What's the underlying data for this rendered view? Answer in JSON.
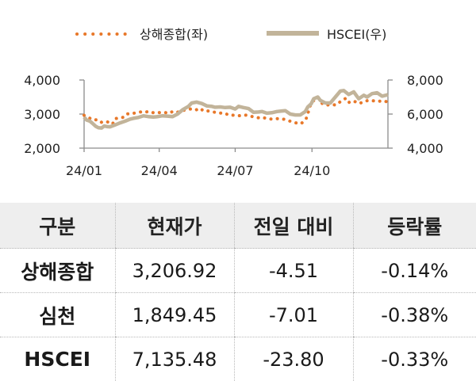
{
  "chart_data": {
    "type": "line",
    "legend": [
      "상해종합(좌)",
      "HSCEI(우)"
    ],
    "legend_position": "top",
    "x_ticks": [
      "24/01",
      "24/04",
      "24/07",
      "24/10"
    ],
    "y_left": {
      "ticks": [
        "2,000",
        "3,000",
        "4,000"
      ],
      "range": [
        2000,
        4000
      ]
    },
    "y_right": {
      "ticks": [
        "4,000",
        "6,000",
        "8,000"
      ],
      "range": [
        4000,
        8000
      ]
    },
    "grid": false,
    "colors": {
      "shanghai": "#e8782a",
      "hscei": "#c2b49a"
    },
    "series": [
      {
        "name": "상해종합(좌)",
        "axis": "left",
        "style": "dotted",
        "dates": [
          "2024-01-02",
          "2024-01-05",
          "2024-01-09",
          "2024-01-12",
          "2024-01-16",
          "2024-01-19",
          "2024-01-23",
          "2024-01-26",
          "2024-01-30",
          "2024-02-02",
          "2024-02-05",
          "2024-02-08",
          "2024-02-19",
          "2024-02-23",
          "2024-02-28",
          "2024-03-05",
          "2024-03-11",
          "2024-03-15",
          "2024-03-20",
          "2024-03-26",
          "2024-03-29",
          "2024-04-08",
          "2024-04-12",
          "2024-04-17",
          "2024-04-22",
          "2024-04-26",
          "2024-05-06",
          "2024-05-10",
          "2024-05-15",
          "2024-05-20",
          "2024-05-24",
          "2024-05-30",
          "2024-06-05",
          "2024-06-12",
          "2024-06-18",
          "2024-06-24",
          "2024-06-28",
          "2024-07-05",
          "2024-07-11",
          "2024-07-17",
          "2024-07-23",
          "2024-07-29",
          "2024-08-02",
          "2024-08-08",
          "2024-08-14",
          "2024-08-20",
          "2024-08-26",
          "2024-08-30",
          "2024-09-05",
          "2024-09-11",
          "2024-09-18",
          "2024-09-24",
          "2024-09-27",
          "2024-09-30",
          "2024-10-08",
          "2024-10-14",
          "2024-10-18",
          "2024-10-24",
          "2024-10-30",
          "2024-11-05",
          "2024-11-11",
          "2024-11-15",
          "2024-11-21",
          "2024-11-27",
          "2024-12-03",
          "2024-12-09",
          "2024-12-13",
          "2024-12-19",
          "2024-12-25",
          "2024-12-31"
        ],
        "values": [
          2962,
          2929,
          2877,
          2882,
          2833,
          2832,
          2756,
          2745,
          2770,
          2730,
          2702,
          2865,
          2910,
          3004,
          3015,
          3039,
          3068,
          3054,
          3079,
          3031,
          3041,
          3047,
          3019,
          3071,
          3044,
          3088,
          3140,
          3154,
          3120,
          3171,
          3088,
          3091,
          3061,
          3029,
          3030,
          2963,
          2967,
          2949,
          2971,
          2962,
          2915,
          2891,
          2905,
          2870,
          2850,
          2866,
          2855,
          2842,
          2788,
          2744,
          2717,
          2863,
          3087,
          3336,
          3489,
          3285,
          3261,
          3280,
          3266,
          3386,
          3470,
          3330,
          3370,
          3309,
          3379,
          3402,
          3391,
          3370,
          3394,
          3351
        ]
      },
      {
        "name": "HSCEI(우)",
        "axis": "right",
        "style": "solid",
        "dates": [
          "2024-01-02",
          "2024-01-05",
          "2024-01-09",
          "2024-01-12",
          "2024-01-16",
          "2024-01-19",
          "2024-01-23",
          "2024-01-26",
          "2024-01-30",
          "2024-02-02",
          "2024-02-08",
          "2024-02-14",
          "2024-02-20",
          "2024-02-26",
          "2024-03-01",
          "2024-03-07",
          "2024-03-13",
          "2024-03-19",
          "2024-03-25",
          "2024-03-29",
          "2024-04-05",
          "2024-04-11",
          "2024-04-17",
          "2024-04-23",
          "2024-04-29",
          "2024-05-06",
          "2024-05-10",
          "2024-05-16",
          "2024-05-22",
          "2024-05-28",
          "2024-06-03",
          "2024-06-07",
          "2024-06-13",
          "2024-06-19",
          "2024-06-25",
          "2024-07-01",
          "2024-07-05",
          "2024-07-11",
          "2024-07-17",
          "2024-07-23",
          "2024-07-29",
          "2024-08-02",
          "2024-08-08",
          "2024-08-14",
          "2024-08-20",
          "2024-08-26",
          "2024-08-30",
          "2024-09-05",
          "2024-09-11",
          "2024-09-17",
          "2024-09-23",
          "2024-09-26",
          "2024-09-30",
          "2024-10-03",
          "2024-10-08",
          "2024-10-11",
          "2024-10-17",
          "2024-10-23",
          "2024-10-29",
          "2024-11-04",
          "2024-11-08",
          "2024-11-14",
          "2024-11-20",
          "2024-11-26",
          "2024-12-02",
          "2024-12-06",
          "2024-12-12",
          "2024-12-18",
          "2024-12-24",
          "2024-12-31"
        ],
        "values": [
          5820,
          5650,
          5580,
          5460,
          5280,
          5200,
          5180,
          5300,
          5260,
          5250,
          5360,
          5480,
          5580,
          5700,
          5750,
          5800,
          5900,
          5850,
          5830,
          5840,
          5900,
          5880,
          5850,
          6000,
          6250,
          6450,
          6650,
          6700,
          6620,
          6480,
          6450,
          6400,
          6420,
          6380,
          6400,
          6300,
          6450,
          6380,
          6320,
          6100,
          6120,
          6150,
          6050,
          6080,
          6150,
          6180,
          6200,
          6000,
          5950,
          5950,
          6150,
          6420,
          6600,
          6900,
          7000,
          6800,
          6650,
          6650,
          7000,
          7350,
          7380,
          7150,
          7300,
          6900,
          7100,
          7000,
          7200,
          7250,
          7050,
          7135
        ]
      }
    ]
  },
  "table": {
    "headers": [
      "구분",
      "현재가",
      "전일 대비",
      "등락률"
    ],
    "rows": [
      {
        "name": "상해종합",
        "price": "3,206.92",
        "change": "-4.51",
        "rate": "-0.14%"
      },
      {
        "name": "심천",
        "price": "1,849.45",
        "change": "-7.01",
        "rate": "-0.38%"
      },
      {
        "name": "HSCEI",
        "price": "7,135.48",
        "change": "-23.80",
        "rate": "-0.33%"
      }
    ]
  }
}
